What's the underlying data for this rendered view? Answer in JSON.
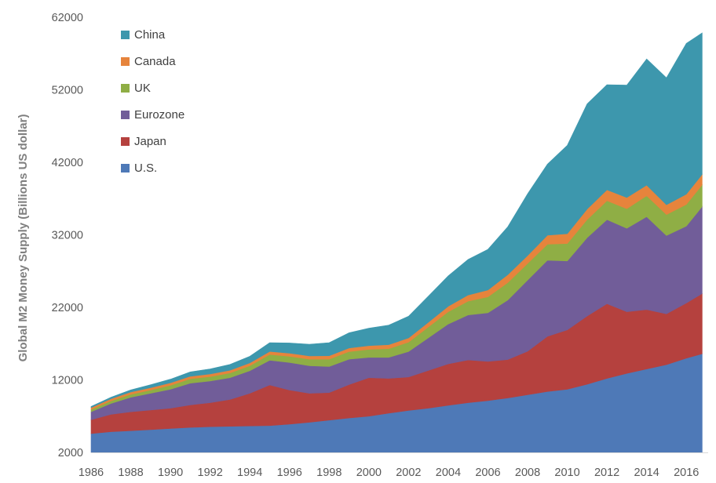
{
  "chart_data": {
    "type": "area",
    "stacked": true,
    "title": "",
    "xlabel": "",
    "ylabel": "Global M2 Money Supply (Billions US dollar)",
    "ylim": [
      2000,
      62000
    ],
    "xlim": [
      1986,
      2017
    ],
    "y_ticks": [
      2000,
      12000,
      22000,
      32000,
      42000,
      52000,
      62000
    ],
    "x_ticks": [
      1986,
      1988,
      1990,
      1992,
      1994,
      1996,
      1998,
      2000,
      2002,
      2004,
      2006,
      2008,
      2010,
      2012,
      2014,
      2016
    ],
    "grid": false,
    "legend_position": "top-left",
    "x": [
      1986,
      1987,
      1988,
      1989,
      1990,
      1991,
      1992,
      1993,
      1994,
      1995,
      1996,
      1997,
      1998,
      1999,
      2000,
      2001,
      2002,
      2003,
      2004,
      2005,
      2006,
      2007,
      2008,
      2009,
      2010,
      2011,
      2012,
      2013,
      2014,
      2015,
      2016,
      2016.8
    ],
    "series": [
      {
        "name": "U.S.",
        "color": "#4e79b7",
        "values": [
          2600,
          2850,
          3000,
          3150,
          3300,
          3450,
          3550,
          3600,
          3650,
          3700,
          3900,
          4150,
          4450,
          4750,
          5000,
          5400,
          5800,
          6100,
          6500,
          6850,
          7150,
          7500,
          7950,
          8400,
          8700,
          9400,
          10200,
          10900,
          11500,
          12100,
          13000,
          13600
        ]
      },
      {
        "name": "Japan",
        "color": "#b5413e",
        "values": [
          1900,
          2400,
          2600,
          2700,
          2800,
          3100,
          3300,
          3700,
          4500,
          5600,
          4700,
          4000,
          3800,
          4600,
          5300,
          4800,
          4600,
          5200,
          5700,
          5900,
          5400,
          5300,
          6000,
          7600,
          8200,
          9400,
          10300,
          8500,
          8200,
          7000,
          7600,
          8300
        ]
      },
      {
        "name": "Eurozone",
        "color": "#715d99",
        "values": [
          1100,
          1500,
          2000,
          2300,
          2600,
          3000,
          3000,
          3000,
          3100,
          3400,
          3800,
          3800,
          3600,
          3500,
          2800,
          2900,
          3500,
          4500,
          5500,
          6200,
          6700,
          8200,
          9800,
          10500,
          9500,
          10800,
          11600,
          11500,
          12800,
          10800,
          10600,
          12000
        ]
      },
      {
        "name": "UK",
        "color": "#8fae45",
        "values": [
          300,
          350,
          400,
          450,
          550,
          600,
          600,
          650,
          700,
          800,
          850,
          900,
          1000,
          1050,
          1100,
          1200,
          1300,
          1500,
          1700,
          1900,
          2200,
          2400,
          2300,
          2200,
          2400,
          2500,
          2600,
          2700,
          2900,
          2900,
          3000,
          3000
        ]
      },
      {
        "name": "Canada",
        "color": "#e6843c",
        "values": [
          280,
          300,
          320,
          330,
          350,
          350,
          360,
          380,
          400,
          420,
          440,
          460,
          480,
          500,
          520,
          550,
          580,
          650,
          750,
          850,
          950,
          1100,
          1100,
          1250,
          1350,
          1450,
          1500,
          1550,
          1450,
          1350,
          1400,
          1450
        ]
      },
      {
        "name": "China",
        "color": "#3d97ad",
        "values": [
          150,
          200,
          300,
          400,
          500,
          600,
          700,
          800,
          900,
          1200,
          1400,
          1600,
          1800,
          2100,
          2400,
          2700,
          3000,
          3600,
          4200,
          4900,
          5600,
          6600,
          8500,
          9800,
          12200,
          14500,
          14500,
          15500,
          17400,
          17500,
          20800,
          19500
        ]
      }
    ]
  }
}
